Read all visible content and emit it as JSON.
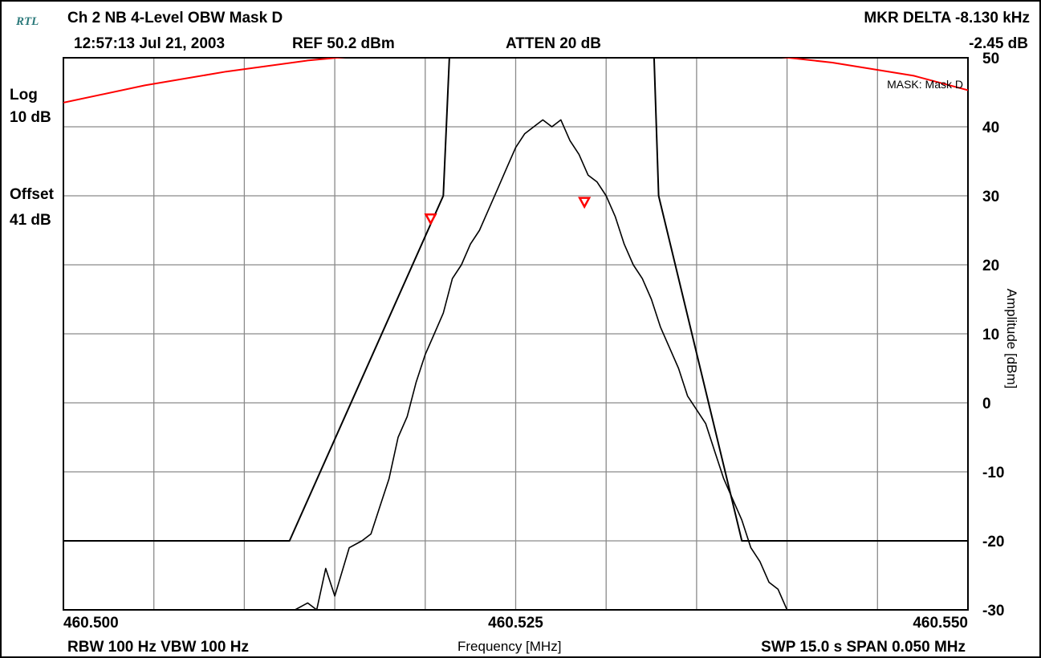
{
  "header": {
    "logo": "RTL",
    "title": "Ch 2 NB 4-Level OBW Mask D",
    "datetime": "12:57:13 Jul 21, 2003",
    "ref_level": "REF 50.2 dBm",
    "atten": "ATTEN 20 dB",
    "marker_delta": "MKR DELTA -8.130 kHz",
    "marker_amp": "-2.45 dB"
  },
  "scale": {
    "mode": "Log",
    "per_div": "10 dB",
    "offset_label": "Offset",
    "offset_value": "41 dB"
  },
  "footer": {
    "bandwidth": "RBW 100 Hz  VBW 100 Hz",
    "sweep": "SWP 15.0 s  SPAN 0.050 MHz"
  },
  "chart_data": {
    "type": "line",
    "xlabel": "Frequency [MHz]",
    "ylabel": "Amplitude [dBm]",
    "xlim": [
      460.5,
      460.55
    ],
    "ylim": [
      -30,
      50.2
    ],
    "x_ticks": [
      "460.500",
      "460.525",
      "460.550"
    ],
    "y_ticks": [
      50,
      40,
      30,
      20,
      10,
      0,
      -10,
      -20,
      -30
    ],
    "grid": true,
    "annotations": [
      "MASK: Mask D"
    ],
    "colors": {
      "trace": "#000000",
      "mask": "#000000",
      "limit_curve": "#ff0000",
      "marker": "#ff0000"
    },
    "series": [
      {
        "name": "trace",
        "x": [
          460.5128,
          460.5135,
          460.514,
          460.5145,
          460.515,
          460.5158,
          460.5165,
          460.517,
          460.5175,
          460.518,
          460.5185,
          460.519,
          460.5195,
          460.52,
          460.5205,
          460.521,
          460.5215,
          460.522,
          460.5225,
          460.523,
          460.5235,
          460.524,
          460.5245,
          460.525,
          460.5255,
          460.526,
          460.5265,
          460.527,
          460.5275,
          460.528,
          460.5285,
          460.529,
          460.5295,
          460.53,
          460.5305,
          460.531,
          460.5315,
          460.532,
          460.5325,
          460.533,
          460.5335,
          460.534,
          460.5345,
          460.535,
          460.5355,
          460.536,
          460.5365,
          460.537,
          460.5375,
          460.538,
          460.5385,
          460.539,
          460.5395,
          460.54
        ],
        "y": [
          -30,
          -29,
          -30,
          -24,
          -28,
          -21,
          -20,
          -19,
          -15,
          -11,
          -5,
          -2,
          3,
          7,
          10,
          13,
          18,
          20,
          23,
          25,
          28,
          31,
          34,
          37,
          39,
          40,
          41,
          40,
          41,
          38,
          36,
          33,
          32,
          30,
          27,
          23,
          20,
          18,
          15,
          11,
          8,
          5,
          1,
          -1,
          -3,
          -7,
          -11,
          -14,
          -17,
          -21,
          -23,
          -26,
          -27,
          -30
        ]
      },
      {
        "name": "mask",
        "x": [
          460.5,
          460.5125,
          460.521,
          460.5214,
          460.5326,
          460.5329,
          460.5375,
          460.55
        ],
        "y": [
          -20,
          -20,
          30,
          54,
          54,
          30,
          -20,
          -20
        ]
      },
      {
        "name": "limit",
        "x": [
          460.5,
          460.5045,
          460.509,
          460.5135,
          460.518,
          460.522,
          460.5225,
          460.5315,
          460.5335,
          460.538,
          460.5425,
          460.547,
          460.55
        ],
        "y": [
          43.5,
          46,
          48,
          49.6,
          50.7,
          51.4,
          51.5,
          51.5,
          51.4,
          50.6,
          49.3,
          47.4,
          45.3
        ]
      }
    ],
    "markers": [
      {
        "x": 460.5203,
        "y": 26.6
      },
      {
        "x": 460.5288,
        "y": 29
      }
    ]
  }
}
